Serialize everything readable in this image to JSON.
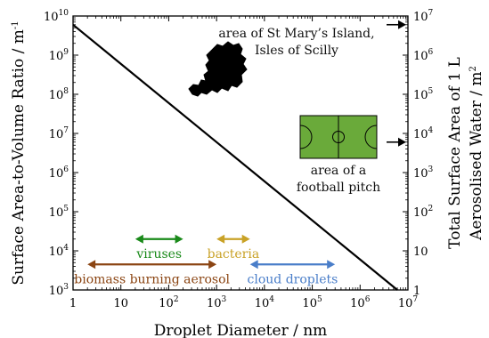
{
  "chart_data": {
    "type": "line",
    "xlabel": "Droplet Diameter / nm",
    "ylabel": "Surface Area-to-Volume Ratio / m",
    "ylabel_sup": "-1",
    "y2label_line1": "Total Surface Area of 1 L",
    "y2label_line2": "Aerosolised Water / m",
    "y2label_sup": "2",
    "x_scale": "log",
    "y_scale": "log",
    "y2_scale": "log",
    "xlim": [
      1,
      10000000
    ],
    "ylim": [
      1000,
      10000000000
    ],
    "y2lim": [
      1,
      10000000
    ],
    "x_ticks": [
      {
        "value": 1,
        "base": "1",
        "exp": ""
      },
      {
        "value": 10,
        "base": "10",
        "exp": ""
      },
      {
        "value": 100,
        "base": "10",
        "exp": "2"
      },
      {
        "value": 1000,
        "base": "10",
        "exp": "3"
      },
      {
        "value": 10000,
        "base": "10",
        "exp": "4"
      },
      {
        "value": 100000,
        "base": "10",
        "exp": "5"
      },
      {
        "value": 1000000,
        "base": "10",
        "exp": "6"
      },
      {
        "value": 10000000,
        "base": "10",
        "exp": "7"
      }
    ],
    "y_ticks": [
      {
        "value": 1000,
        "base": "10",
        "exp": "3"
      },
      {
        "value": 10000,
        "base": "10",
        "exp": "4"
      },
      {
        "value": 100000,
        "base": "10",
        "exp": "5"
      },
      {
        "value": 1000000,
        "base": "10",
        "exp": "6"
      },
      {
        "value": 10000000,
        "base": "10",
        "exp": "7"
      },
      {
        "value": 100000000,
        "base": "10",
        "exp": "8"
      },
      {
        "value": 1000000000,
        "base": "10",
        "exp": "9"
      },
      {
        "value": 10000000000,
        "base": "10",
        "exp": "10"
      }
    ],
    "y2_ticks": [
      {
        "value": 1,
        "base": "1",
        "exp": ""
      },
      {
        "value": 10,
        "base": "10",
        "exp": ""
      },
      {
        "value": 100,
        "base": "10",
        "exp": "2"
      },
      {
        "value": 1000,
        "base": "10",
        "exp": "3"
      },
      {
        "value": 10000,
        "base": "10",
        "exp": "4"
      },
      {
        "value": 100000,
        "base": "10",
        "exp": "5"
      },
      {
        "value": 1000000,
        "base": "10",
        "exp": "6"
      },
      {
        "value": 10000000,
        "base": "10",
        "exp": "7"
      }
    ],
    "series": [
      {
        "points": [
          [
            1,
            6000000000
          ],
          [
            6000000,
            1000
          ]
        ],
        "color": "#000000"
      }
    ],
    "ranges": [
      {
        "label": "viruses",
        "x": [
          20,
          200
        ],
        "y": 20000,
        "color": "#1a8a1a"
      },
      {
        "label": "bacteria",
        "x": [
          1000,
          5000
        ],
        "y": 20000,
        "color": "#c9a227"
      },
      {
        "label": "biomass burning aerosol",
        "x": [
          2,
          1000
        ],
        "y": 4500,
        "color": "#8b4513"
      },
      {
        "label": "cloud droplets",
        "x": [
          5000,
          300000
        ],
        "y": 4500,
        "color": "#4a7ec9"
      }
    ],
    "annotations": [
      {
        "id": "island",
        "lines": [
          "area of St Mary’s Island,",
          "Isles of Scilly"
        ],
        "arrow_y2": 6000000
      },
      {
        "id": "pitch",
        "lines": [
          "area of a",
          "football pitch"
        ],
        "arrow_y2": 6000
      }
    ],
    "pitch_color": "#6aaa3a",
    "grid": false
  }
}
